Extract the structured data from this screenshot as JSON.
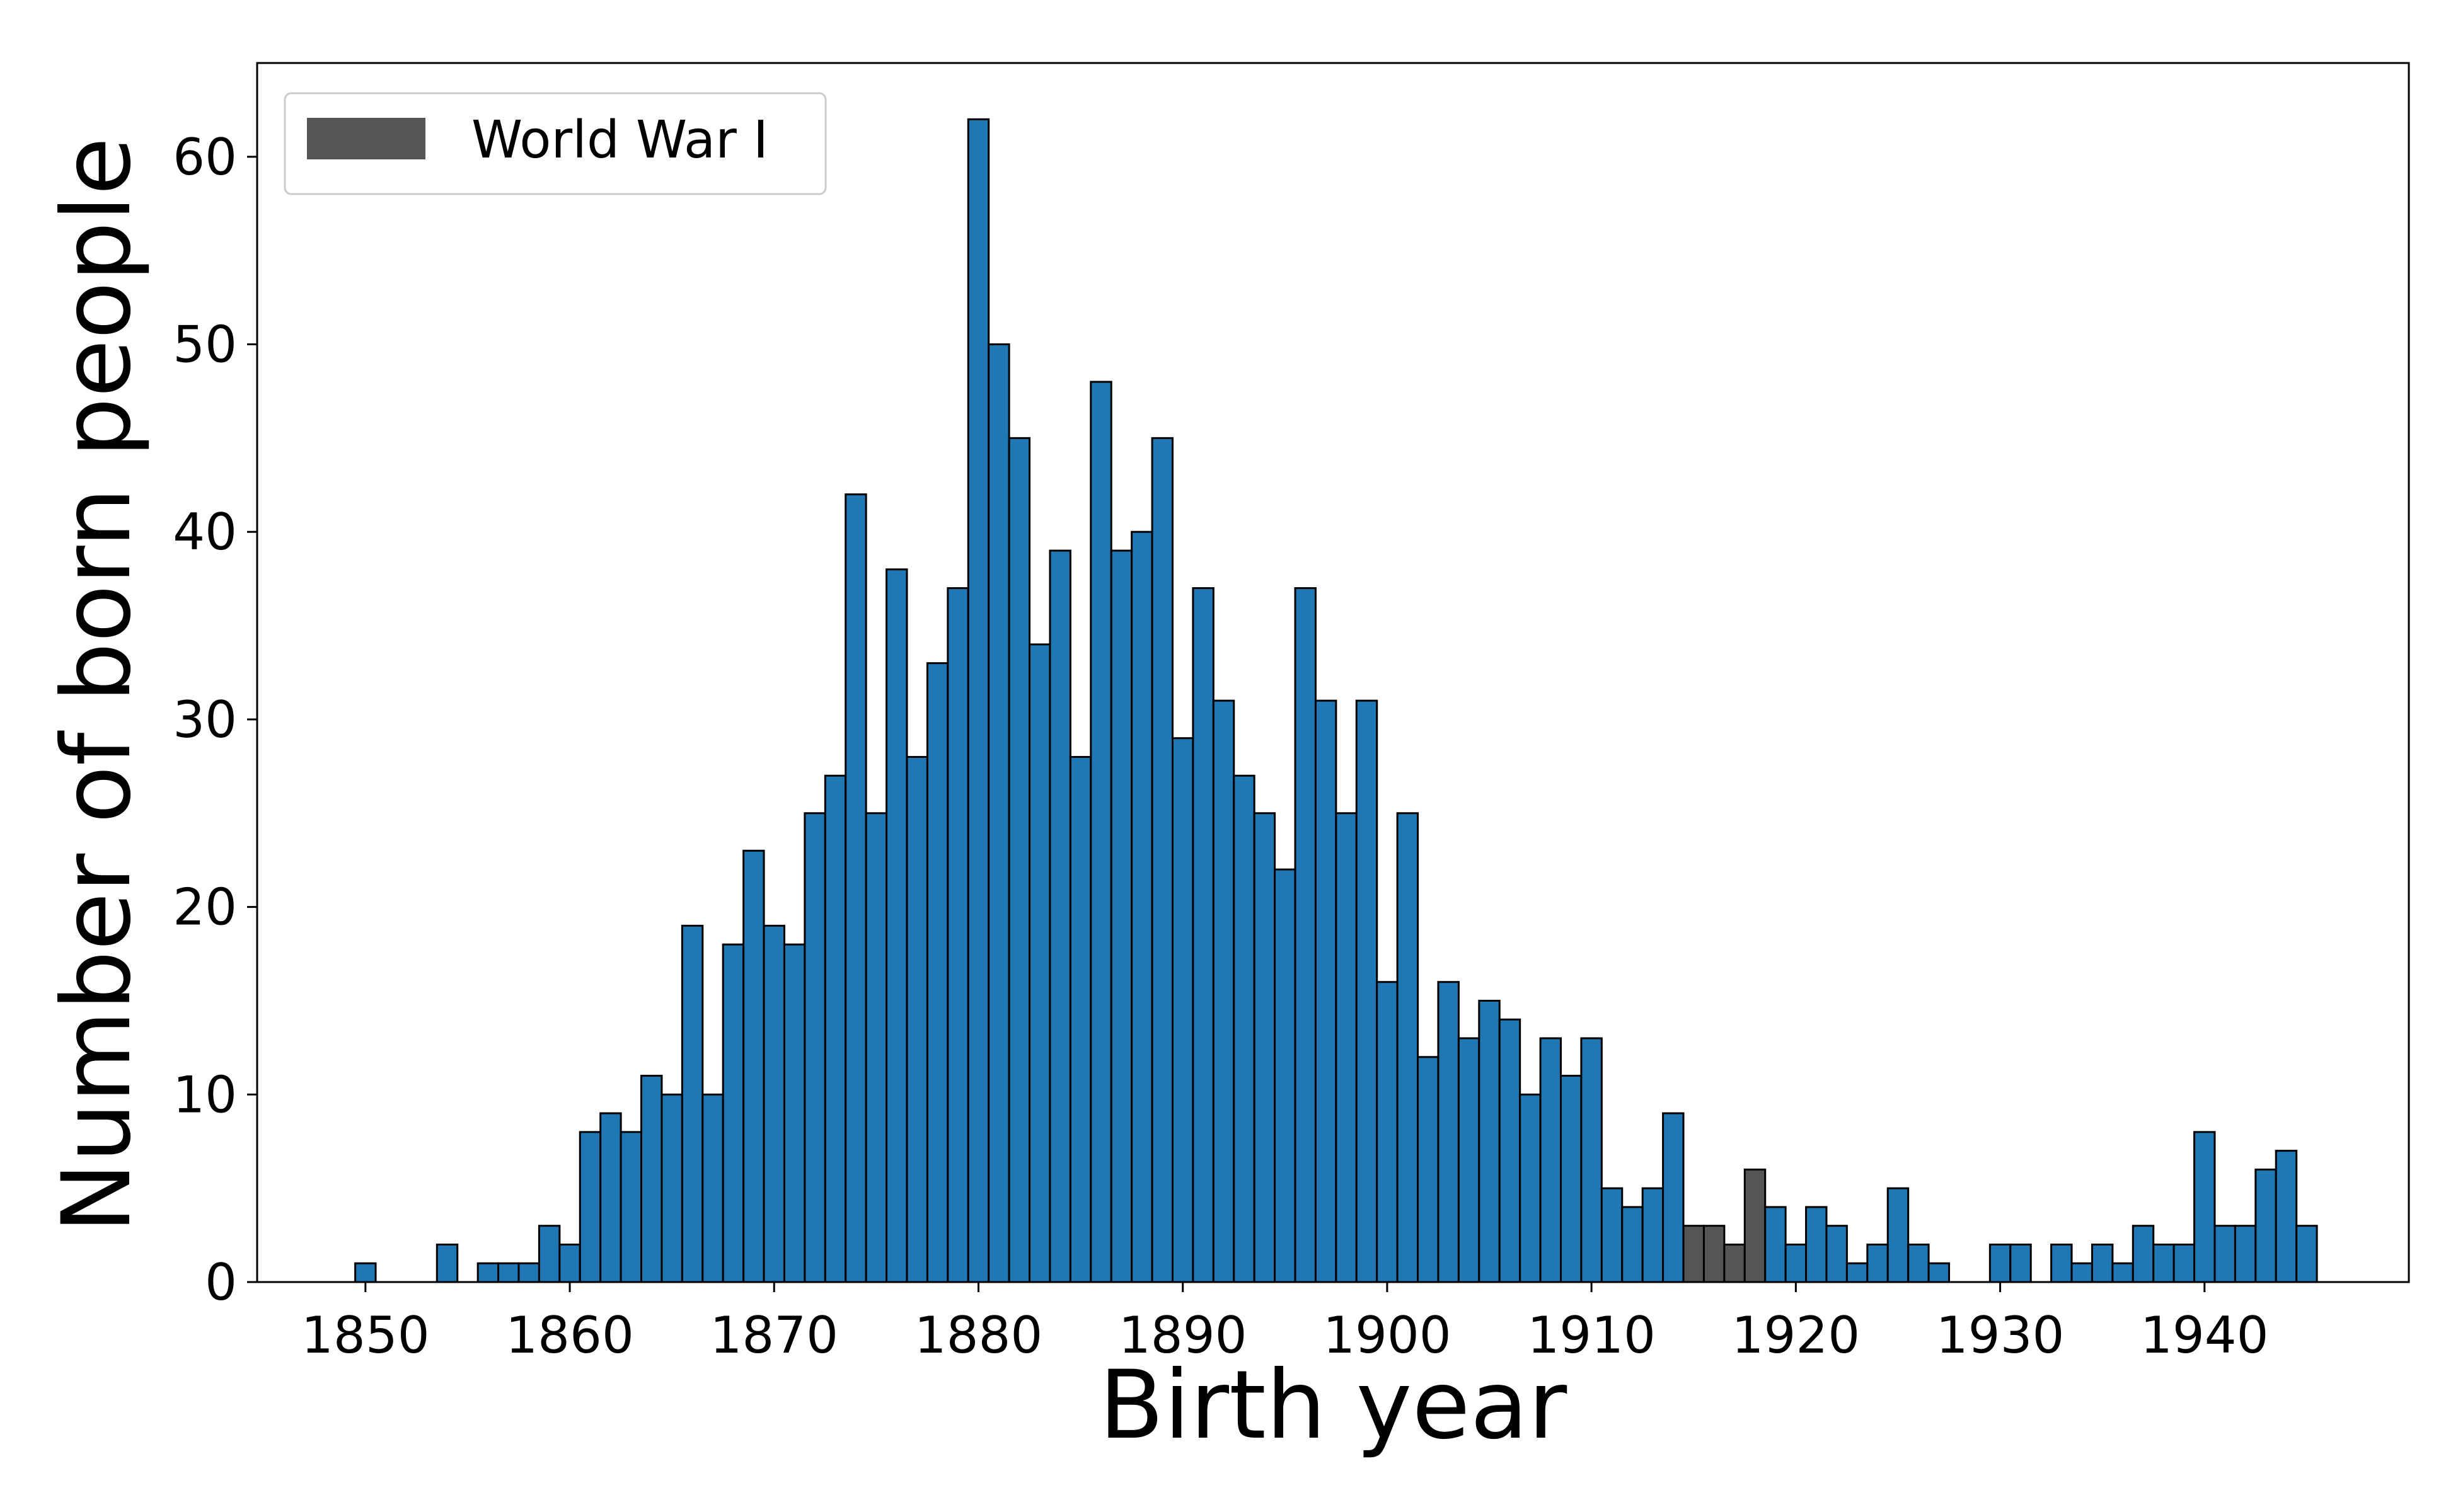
{
  "chart_data": {
    "type": "bar",
    "xlabel": "Birth year",
    "ylabel": "Number of born people",
    "xlim": [
      1844.7,
      1950
    ],
    "ylim": [
      0,
      65
    ],
    "x_ticks": [
      1850,
      1860,
      1870,
      1880,
      1890,
      1900,
      1910,
      1920,
      1930,
      1940
    ],
    "y_ticks": [
      0,
      10,
      20,
      30,
      40,
      50,
      60
    ],
    "grid": false,
    "legend": {
      "position": "upper-left",
      "entries": [
        "World War I"
      ]
    },
    "colors": {
      "default": "#1f77b4",
      "highlight": "#555555",
      "edge": "#000000"
    },
    "highlight_years": [
      1915,
      1916,
      1917,
      1918
    ],
    "series": [
      {
        "x": [
          1850,
          1854,
          1856,
          1857,
          1858,
          1859,
          1860,
          1861,
          1862,
          1863,
          1864,
          1865,
          1866,
          1867,
          1868,
          1869,
          1870,
          1871,
          1872,
          1873,
          1874,
          1875,
          1876,
          1877,
          1878,
          1879,
          1880,
          1881,
          1882,
          1883,
          1884,
          1885,
          1886,
          1887,
          1888,
          1889,
          1890,
          1891,
          1892,
          1893,
          1894,
          1895,
          1896,
          1897,
          1898,
          1899,
          1900,
          1901,
          1902,
          1903,
          1904,
          1905,
          1906,
          1907,
          1908,
          1909,
          1910,
          1911,
          1912,
          1913,
          1914,
          1915,
          1916,
          1917,
          1918,
          1919,
          1920,
          1921,
          1922,
          1923,
          1924,
          1925,
          1926,
          1927,
          1930,
          1931,
          1933,
          1934,
          1935,
          1936,
          1937,
          1938,
          1939,
          1940,
          1941,
          1942,
          1943,
          1944,
          1945
        ],
        "values": [
          1,
          2,
          1,
          1,
          1,
          3,
          2,
          8,
          9,
          8,
          11,
          10,
          19,
          10,
          18,
          23,
          19,
          18,
          25,
          27,
          42,
          25,
          38,
          28,
          33,
          37,
          62,
          50,
          45,
          34,
          39,
          28,
          48,
          39,
          40,
          45,
          29,
          37,
          31,
          27,
          25,
          22,
          37,
          31,
          25,
          31,
          16,
          25,
          12,
          16,
          13,
          15,
          14,
          10,
          13,
          11,
          13,
          5,
          4,
          5,
          9,
          3,
          3,
          2,
          6,
          4,
          2,
          4,
          3,
          1,
          2,
          5,
          2,
          1,
          2,
          2,
          2,
          1,
          2,
          1,
          3,
          2,
          2,
          8,
          3,
          3,
          6,
          7,
          3
        ]
      }
    ]
  }
}
